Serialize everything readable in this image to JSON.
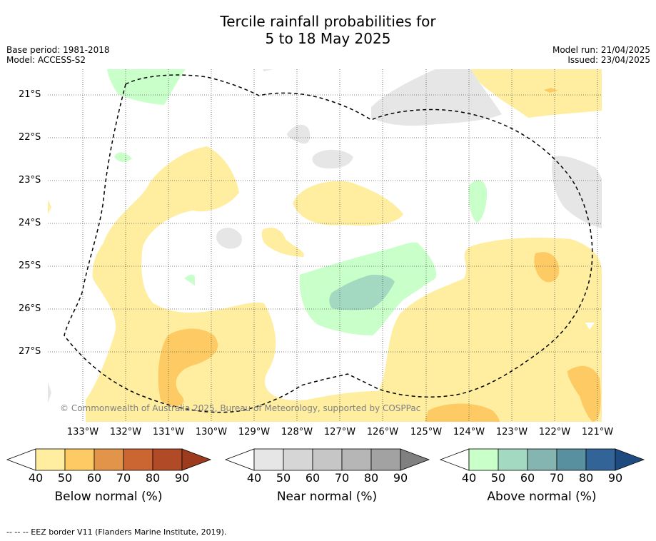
{
  "title_line1": "Tercile rainfall probabilities for",
  "title_line2": "5 to 18 May 2025",
  "base_period": "Base period: 1981-2018",
  "model": "Model: ACCESS-S2",
  "model_run": "Model run: 21/04/2025",
  "issued": "Issued: 23/04/2025",
  "map": {
    "latitude_labels": [
      "21°S",
      "22°S",
      "23°S",
      "24°S",
      "25°S",
      "26°S",
      "27°S"
    ],
    "longitude_labels": [
      "133°W",
      "132°W",
      "131°W",
      "130°W",
      "129°W",
      "128°W",
      "127°W",
      "126°W",
      "125°W",
      "124°W",
      "123°W",
      "122°W",
      "121°W"
    ],
    "credit": "© Commonwealth of Australia 2025, Bureau of Meteorology, supported by COSPPac",
    "colors": {
      "below_40": "#ffeea0",
      "below_50": "#fdca63",
      "near_40": "#e6e6e6",
      "above_40": "#c9ffc9",
      "above_50": "#a3d9c0",
      "eez_line": "#000000",
      "grid": "#555555"
    }
  },
  "colorbars": [
    {
      "caption": "Below normal (%)",
      "ticks": [
        "40",
        "50",
        "60",
        "70",
        "80",
        "90"
      ],
      "colors": [
        "#ffeea0",
        "#fdca63",
        "#e2954a",
        "#cb6532",
        "#b04a27",
        "#9c3b1e"
      ]
    },
    {
      "caption": "Near normal (%)",
      "ticks": [
        "40",
        "50",
        "60",
        "70",
        "80",
        "90"
      ],
      "colors": [
        "#e6e6e6",
        "#d6d6d6",
        "#c6c6c6",
        "#b6b6b6",
        "#a2a2a2",
        "#808080"
      ]
    },
    {
      "caption": "Above normal (%)",
      "ticks": [
        "40",
        "50",
        "60",
        "70",
        "80",
        "90"
      ],
      "colors": [
        "#c9ffc9",
        "#a3d9c0",
        "#84b5b0",
        "#5990a0",
        "#336498",
        "#1d4b80"
      ]
    }
  ],
  "footnote": "--  --  -- EEZ border V11 (Flanders Marine Institute, 2019)."
}
